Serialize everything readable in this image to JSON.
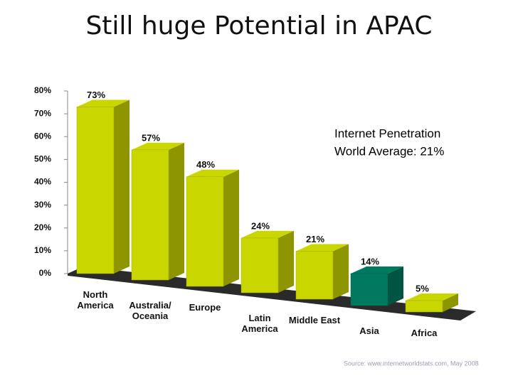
{
  "chart_data": {
    "type": "bar3d",
    "title": "Still huge Potential in APAC",
    "categories": [
      "North America",
      "Australia/ Oceania",
      "Europe",
      "Latin America",
      "Middle East",
      "Asia",
      "Africa"
    ],
    "values": [
      73,
      57,
      48,
      24,
      21,
      14,
      5
    ],
    "value_labels": [
      "73%",
      "57%",
      "48%",
      "24%",
      "21%",
      "14%",
      "5%"
    ],
    "colors": [
      "#c9d600",
      "#c9d600",
      "#c9d600",
      "#c9d600",
      "#c9d600",
      "#007a5e",
      "#c9d600"
    ],
    "ylim": [
      0,
      80
    ],
    "yticks": [
      {
        "value": 0,
        "label": "0%"
      },
      {
        "value": 10,
        "label": "10%"
      },
      {
        "value": 20,
        "label": "20%"
      },
      {
        "value": 30,
        "label": "30%"
      },
      {
        "value": 40,
        "label": "40%"
      },
      {
        "value": 50,
        "label": "50%"
      },
      {
        "value": 60,
        "label": "60%"
      },
      {
        "value": 70,
        "label": "70%"
      },
      {
        "value": 80,
        "label": "80%"
      }
    ],
    "annotations": [
      "Internet Penetration",
      "World Average: 21%"
    ],
    "source": "Source: www.internetworldstats.com, May 2008"
  }
}
